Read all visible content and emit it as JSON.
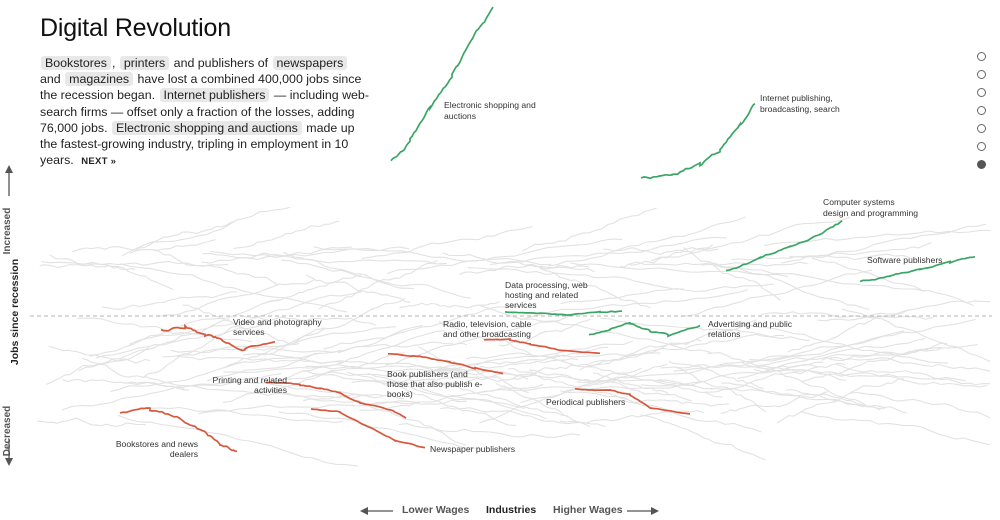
{
  "intro": {
    "title": "Digital Revolution",
    "t_bookstores": "Bookstores",
    "t_comma": ",",
    "t_printers": "printers",
    "t_and_pub": "and publishers of",
    "t_newspapers": "newspapers",
    "t_and": "and",
    "t_magazines": "magazines",
    "t_lost": "have lost a combined 400,000 jobs since the recession began.",
    "t_internet": "Internet publishers",
    "t_including": "— including web-search firms — offset only a fraction of the losses, adding 76,000 jobs.",
    "t_eshop": "Electronic shopping and auctions",
    "t_madeup": "made up the fastest-growing industry, tripling in employment in 10 years.",
    "next": "NEXT »"
  },
  "pager": {
    "count": 7,
    "active": 6
  },
  "axes": {
    "y_label": "Jobs since recession",
    "y_up": "Increased",
    "y_down": "Decreased",
    "x_center": "Industries",
    "x_left": "Lower Wages",
    "x_right": "Higher Wages"
  },
  "colors": {
    "gain": "#3aa565",
    "loss": "#d8573c",
    "background_line": "#e2e2e2",
    "baseline": "#b5b5b5"
  },
  "chart_data": {
    "type": "line",
    "x_encoding": "industry average wage (lower to higher)",
    "y_encoding": "jobs since recession (decreased to increased)",
    "baseline": "recession start",
    "series": [
      {
        "name": "Electronic shopping and auctions",
        "trend": "gain"
      },
      {
        "name": "Internet publishing, broadcasting, search",
        "trend": "gain"
      },
      {
        "name": "Computer systems design and programming",
        "trend": "gain"
      },
      {
        "name": "Software publishers",
        "trend": "gain"
      },
      {
        "name": "Data processing, web hosting and related services",
        "trend": "gain"
      },
      {
        "name": "Advertising and public relations",
        "trend": "gain"
      },
      {
        "name": "Video and photography services",
        "trend": "loss"
      },
      {
        "name": "Radio, television, cable and other broadcasting",
        "trend": "loss"
      },
      {
        "name": "Printing and related activities",
        "trend": "loss"
      },
      {
        "name": "Book publishers (and those that also publish e-books)",
        "trend": "loss"
      },
      {
        "name": "Periodical publishers",
        "trend": "loss"
      },
      {
        "name": "Bookstores and news dealers",
        "trend": "loss"
      },
      {
        "name": "Newspaper publishers",
        "trend": "loss"
      }
    ]
  }
}
